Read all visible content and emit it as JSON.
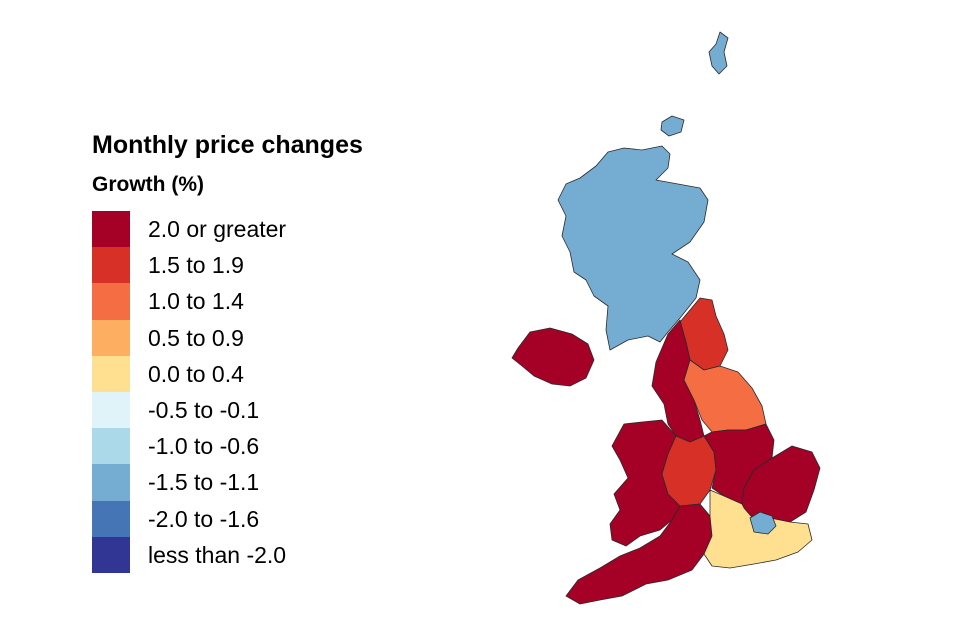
{
  "legend": {
    "title": "Monthly price changes",
    "subtitle": "Growth (%)",
    "items": [
      {
        "label": "2.0 or greater",
        "color": "#a50026"
      },
      {
        "label": "1.5 to 1.9",
        "color": "#d73027"
      },
      {
        "label": "1.0 to 1.4",
        "color": "#f46d43"
      },
      {
        "label": "0.5 to 0.9",
        "color": "#fdae61"
      },
      {
        "label": "0.0 to 0.4",
        "color": "#fee090"
      },
      {
        "label": "-0.5 to -0.1",
        "color": "#e0f3f8"
      },
      {
        "label": "-1.0 to -0.6",
        "color": "#abd9e9"
      },
      {
        "label": "-1.5 to -1.1",
        "color": "#74add1"
      },
      {
        "label": "-2.0 to -1.6",
        "color": "#4575b4"
      },
      {
        "label": "less than -2.0",
        "color": "#313695"
      }
    ]
  },
  "regions": [
    {
      "id": "scotland",
      "band": "-1.5 to -1.1"
    },
    {
      "id": "northern-ireland",
      "band": "2.0 or greater"
    },
    {
      "id": "north-east",
      "band": "1.5 to 1.9"
    },
    {
      "id": "north-west",
      "band": "2.0 or greater"
    },
    {
      "id": "yorkshire-and-the-humber",
      "band": "1.0 to 1.4"
    },
    {
      "id": "wales",
      "band": "2.0 or greater"
    },
    {
      "id": "west-midlands",
      "band": "1.5 to 1.9"
    },
    {
      "id": "east-midlands",
      "band": "2.0 or greater"
    },
    {
      "id": "east-of-england",
      "band": "2.0 or greater"
    },
    {
      "id": "london",
      "band": "-1.5 to -1.1"
    },
    {
      "id": "south-east",
      "band": "0.0 to 0.4"
    },
    {
      "id": "south-west",
      "band": "2.0 or greater"
    }
  ]
}
